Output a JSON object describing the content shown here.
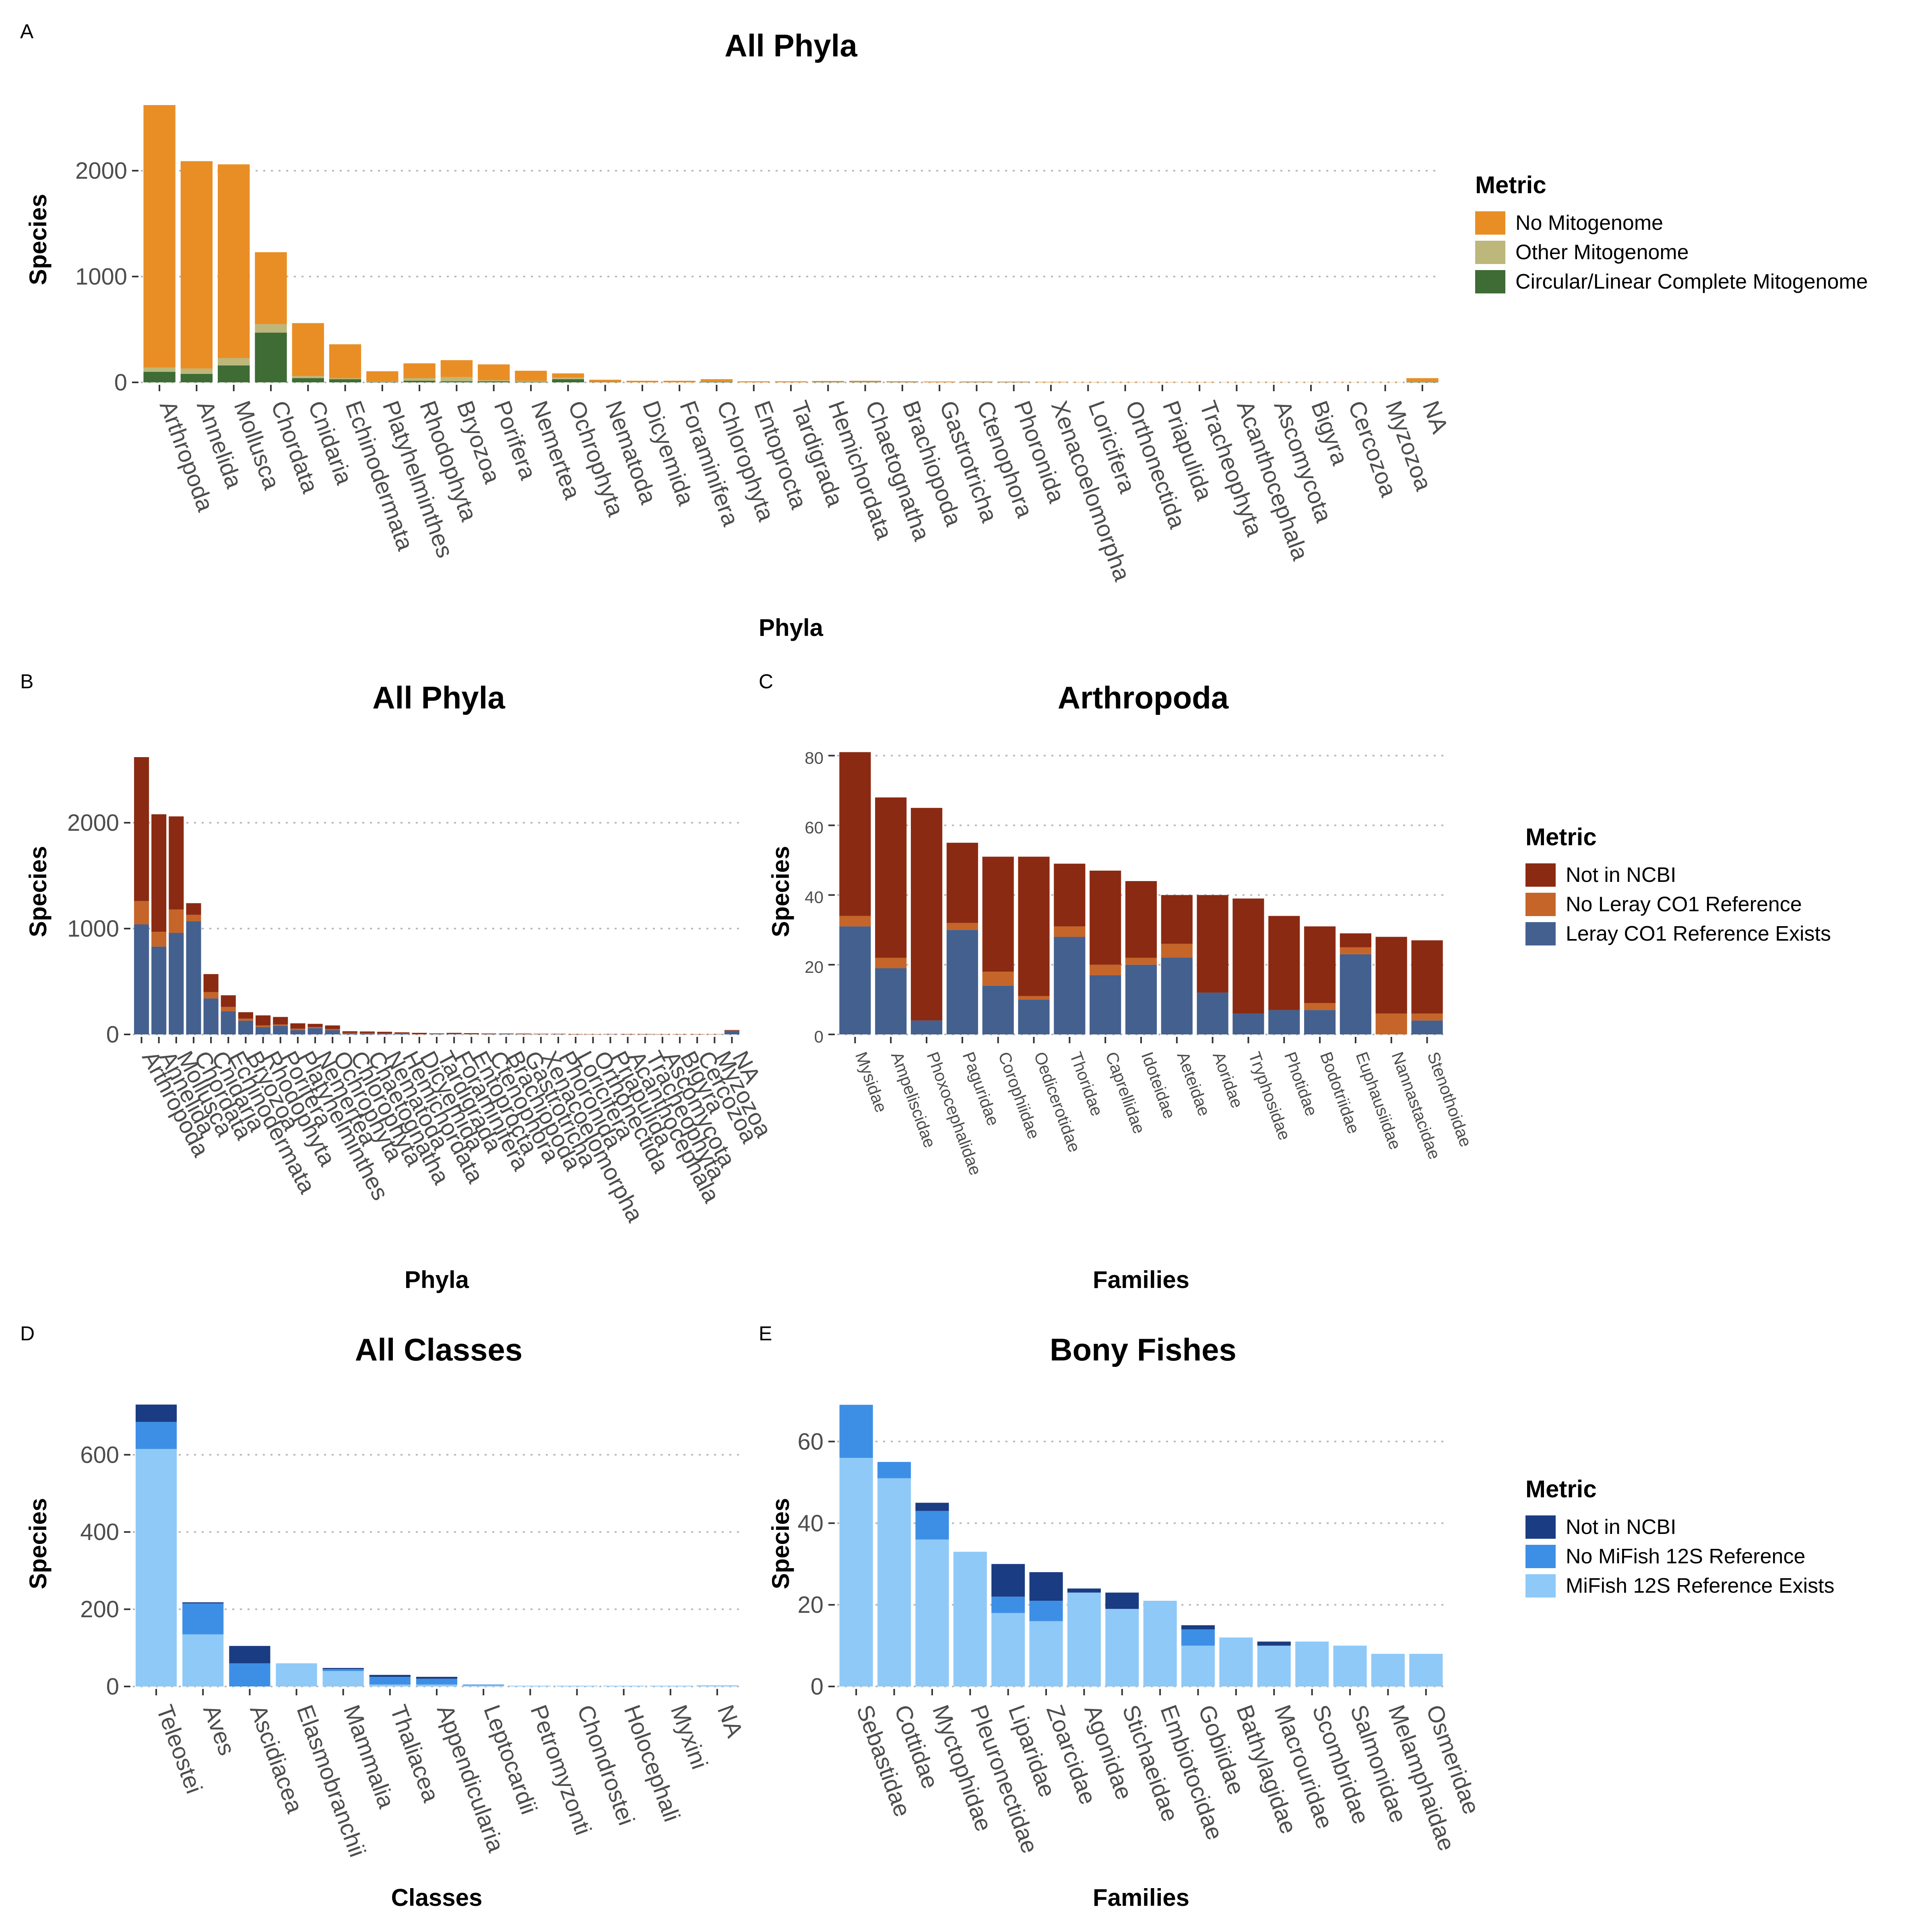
{
  "panels": [
    {
      "letter": "A",
      "title": "All Phyla",
      "xlabel": "Phyla",
      "ylabel": "Species",
      "legend": {
        "title": "Metric"
      },
      "chart_data": {
        "type": "bar",
        "stacked": true,
        "title": "All Phyla",
        "xlabel": "Phyla",
        "ylabel": "Species",
        "ylim": [
          0,
          2700
        ],
        "yticks": [
          0,
          1000,
          2000
        ],
        "grid": "horizontal dotted",
        "legend_position": "right",
        "categories": [
          "Arthropoda",
          "Annelida",
          "Mollusca",
          "Chordata",
          "Cnidaria",
          "Echinodermata",
          "Platyhelminthes",
          "Rhodophyta",
          "Bryozoa",
          "Porifera",
          "Nemertea",
          "Ochrophyta",
          "Nematoda",
          "Dicyemida",
          "Foraminifera",
          "Chlorophyta",
          "Entoprocta",
          "Tardigrada",
          "Hemichordata",
          "Chaetognatha",
          "Brachiopoda",
          "Gastrotricha",
          "Ctenophora",
          "Phoronida",
          "Xenacoelomorpha",
          "Loricifera",
          "Orthonectida",
          "Priapulida",
          "Tracheophyta",
          "Acanthocephala",
          "Ascomycota",
          "Bigyra",
          "Cercozoa",
          "Myzozoa",
          "NA"
        ],
        "series": [
          {
            "name": "Circular/Linear Complete Mitogenome",
            "color": "#3f6b35",
            "values": [
              100,
              80,
              160,
              470,
              40,
              30,
              5,
              15,
              10,
              10,
              5,
              30,
              2,
              0,
              0,
              5,
              0,
              0,
              3,
              3,
              2,
              0,
              2,
              2,
              0,
              0,
              0,
              0,
              0,
              0,
              0,
              0,
              0,
              0,
              5
            ]
          },
          {
            "name": "Other Mitogenome",
            "color": "#bdb77b",
            "values": [
              40,
              50,
              70,
              80,
              20,
              10,
              5,
              25,
              40,
              10,
              10,
              15,
              0,
              0,
              0,
              3,
              0,
              0,
              0,
              0,
              0,
              0,
              0,
              0,
              0,
              0,
              0,
              0,
              0,
              0,
              0,
              0,
              0,
              0,
              3
            ]
          },
          {
            "name": "No Mitogenome",
            "color": "#e98e25",
            "values": [
              2480,
              1960,
              1830,
              680,
              500,
              320,
              95,
              140,
              160,
              150,
              95,
              40,
              23,
              15,
              15,
              22,
              10,
              10,
              10,
              12,
              8,
              8,
              6,
              5,
              5,
              3,
              3,
              3,
              3,
              2,
              2,
              2,
              2,
              2,
              32
            ]
          }
        ]
      }
    },
    {
      "letter": "B",
      "title": "All Phyla",
      "xlabel": "Phyla",
      "ylabel": "Species",
      "chart_data": {
        "type": "bar",
        "stacked": true,
        "title": "All Phyla",
        "xlabel": "Phyla",
        "ylabel": "Species",
        "ylim": [
          0,
          2700
        ],
        "yticks": [
          0,
          1000,
          2000
        ],
        "grid": "horizontal dotted",
        "categories": [
          "Arthropoda",
          "Annelida",
          "Mollusca",
          "Chordata",
          "Cnidaria",
          "Echinodermata",
          "Bryozoa",
          "Rhodophyta",
          "Porifera",
          "Platyhelminthes",
          "Nemertea",
          "Ochrophyta",
          "Chlorophyta",
          "Chaetognatha",
          "Nematoda",
          "Hemichordata",
          "Dicyemida",
          "Tardigrada",
          "Foraminifera",
          "Entoprocta",
          "Ctenophora",
          "Brachiopoda",
          "Gastrotricha",
          "Xenacoelomorpha",
          "Phoronida",
          "Loricifera",
          "Orthonectida",
          "Priapulida",
          "Acanthocephala",
          "Tracheophyta",
          "Ascomycota",
          "Bigyra",
          "Cercozoa",
          "Myzozoa",
          "NA"
        ],
        "series": [
          {
            "name": "Leray CO1 Reference Exists",
            "color": "#44608f",
            "values": [
              1040,
              830,
              960,
              1070,
              340,
              220,
              130,
              70,
              80,
              40,
              60,
              40,
              10,
              10,
              5,
              8,
              0,
              3,
              3,
              2,
              3,
              5,
              2,
              2,
              3,
              0,
              0,
              2,
              1,
              1,
              0,
              0,
              0,
              0,
              35
            ]
          },
          {
            "name": "No Leray CO1 Reference",
            "color": "#c5652a",
            "values": [
              220,
              140,
              220,
              60,
              60,
              40,
              20,
              15,
              15,
              15,
              10,
              10,
              5,
              3,
              3,
              2,
              2,
              2,
              2,
              2,
              1,
              1,
              1,
              1,
              1,
              1,
              1,
              1,
              1,
              1,
              1,
              1,
              1,
              1,
              3
            ]
          },
          {
            "name": "Not in NCBI",
            "color": "#8b2a12",
            "values": [
              1360,
              1110,
              880,
              110,
              170,
              110,
              60,
              95,
              70,
              50,
              30,
              35,
              15,
              15,
              17,
              10,
              13,
              5,
              10,
              8,
              5,
              3,
              5,
              3,
              2,
              3,
              2,
              1,
              2,
              2,
              2,
              2,
              2,
              1,
              4
            ]
          }
        ]
      }
    },
    {
      "letter": "C",
      "title": "Arthropoda",
      "xlabel": "Families",
      "ylabel": "Species",
      "legend": {
        "title": "Metric"
      },
      "chart_data": {
        "type": "bar",
        "stacked": true,
        "title": "Arthropoda",
        "xlabel": "Families",
        "ylabel": "Species",
        "ylim": [
          0,
          82
        ],
        "yticks": [
          0,
          20,
          40,
          60,
          80
        ],
        "grid": "horizontal dotted",
        "legend_position": "right",
        "categories": [
          "Mysidae",
          "Ampeliscidae",
          "Phoxocephalidae",
          "Paguridae",
          "Corophiidae",
          "Oedicerotidae",
          "Thoridae",
          "Caprellidae",
          "Idoteidae",
          "Aeteidae",
          "Aoridae",
          "Tryphosidae",
          "Photidae",
          "Bodotriidae",
          "Euphausiidae",
          "Nannastacidae",
          "Stenothoidae"
        ],
        "series": [
          {
            "name": "Leray CO1 Reference Exists",
            "color": "#44608f",
            "values": [
              31,
              19,
              4,
              30,
              14,
              10,
              28,
              17,
              20,
              22,
              12,
              6,
              7,
              7,
              23,
              0,
              4
            ]
          },
          {
            "name": "No Leray CO1 Reference",
            "color": "#c5652a",
            "values": [
              3,
              3,
              0,
              2,
              4,
              1,
              3,
              3,
              2,
              4,
              0,
              0,
              0,
              2,
              2,
              6,
              2
            ]
          },
          {
            "name": "Not in NCBI",
            "color": "#8b2a12",
            "values": [
              47,
              46,
              61,
              23,
              33,
              40,
              18,
              27,
              22,
              14,
              28,
              33,
              27,
              22,
              4,
              22,
              21
            ]
          }
        ]
      }
    },
    {
      "letter": "D",
      "title": "All Classes",
      "xlabel": "Classes",
      "ylabel": "Species",
      "chart_data": {
        "type": "bar",
        "stacked": true,
        "title": "All Classes",
        "xlabel": "Classes",
        "ylabel": "Species",
        "ylim": [
          0,
          740
        ],
        "yticks": [
          0,
          200,
          400,
          600
        ],
        "grid": "horizontal dotted",
        "categories": [
          "Teleostei",
          "Aves",
          "Ascidiacea",
          "Elasmobranchii",
          "Mammalia",
          "Thaliacea",
          "Appendicularia",
          "Leptocardii",
          "Petromyzonti",
          "Chondrostei",
          "Holocephali",
          "Myxini",
          "NA"
        ],
        "series": [
          {
            "name": "MiFish 12S Reference Exists",
            "color": "#8fc9f7",
            "values": [
              615,
              135,
              0,
              60,
              40,
              5,
              5,
              3,
              2,
              2,
              2,
              2,
              3
            ]
          },
          {
            "name": "No MiFish 12S Reference",
            "color": "#3d8fe6",
            "values": [
              70,
              80,
              60,
              0,
              5,
              20,
              15,
              2,
              0,
              0,
              0,
              0,
              0
            ]
          },
          {
            "name": "Not in NCBI",
            "color": "#1a3c82",
            "values": [
              45,
              3,
              45,
              0,
              3,
              5,
              5,
              0,
              0,
              0,
              0,
              0,
              0
            ]
          }
        ]
      }
    },
    {
      "letter": "E",
      "title": "Bony Fishes",
      "xlabel": "Families",
      "ylabel": "Species",
      "legend": {
        "title": "Metric"
      },
      "chart_data": {
        "type": "bar",
        "stacked": true,
        "title": "Bony Fishes",
        "xlabel": "Families",
        "ylabel": "Species",
        "ylim": [
          0,
          70
        ],
        "yticks": [
          0,
          20,
          40,
          60
        ],
        "grid": "horizontal dotted",
        "legend_position": "right",
        "categories": [
          "Sebastidae",
          "Cottidae",
          "Myctophidae",
          "Pleuronectidae",
          "Liparidae",
          "Zoarcidae",
          "Agonidae",
          "Stichaeidae",
          "Embiotocidae",
          "Gobiidae",
          "Bathylagidae",
          "Macrouridae",
          "Scombridae",
          "Salmonidae",
          "Melamphaidae",
          "Osmeridae"
        ],
        "series": [
          {
            "name": "MiFish 12S Reference Exists",
            "color": "#8fc9f7",
            "values": [
              56,
              51,
              36,
              33,
              18,
              16,
              23,
              19,
              21,
              10,
              12,
              10,
              11,
              10,
              8,
              8
            ]
          },
          {
            "name": "No MiFish 12S Reference",
            "color": "#3d8fe6",
            "values": [
              13,
              4,
              7,
              0,
              4,
              5,
              0,
              0,
              0,
              4,
              0,
              0,
              0,
              0,
              0,
              0
            ]
          },
          {
            "name": "Not in NCBI",
            "color": "#1a3c82",
            "values": [
              0,
              0,
              2,
              0,
              8,
              7,
              1,
              4,
              0,
              1,
              0,
              1,
              0,
              0,
              0,
              0
            ]
          }
        ]
      }
    }
  ]
}
